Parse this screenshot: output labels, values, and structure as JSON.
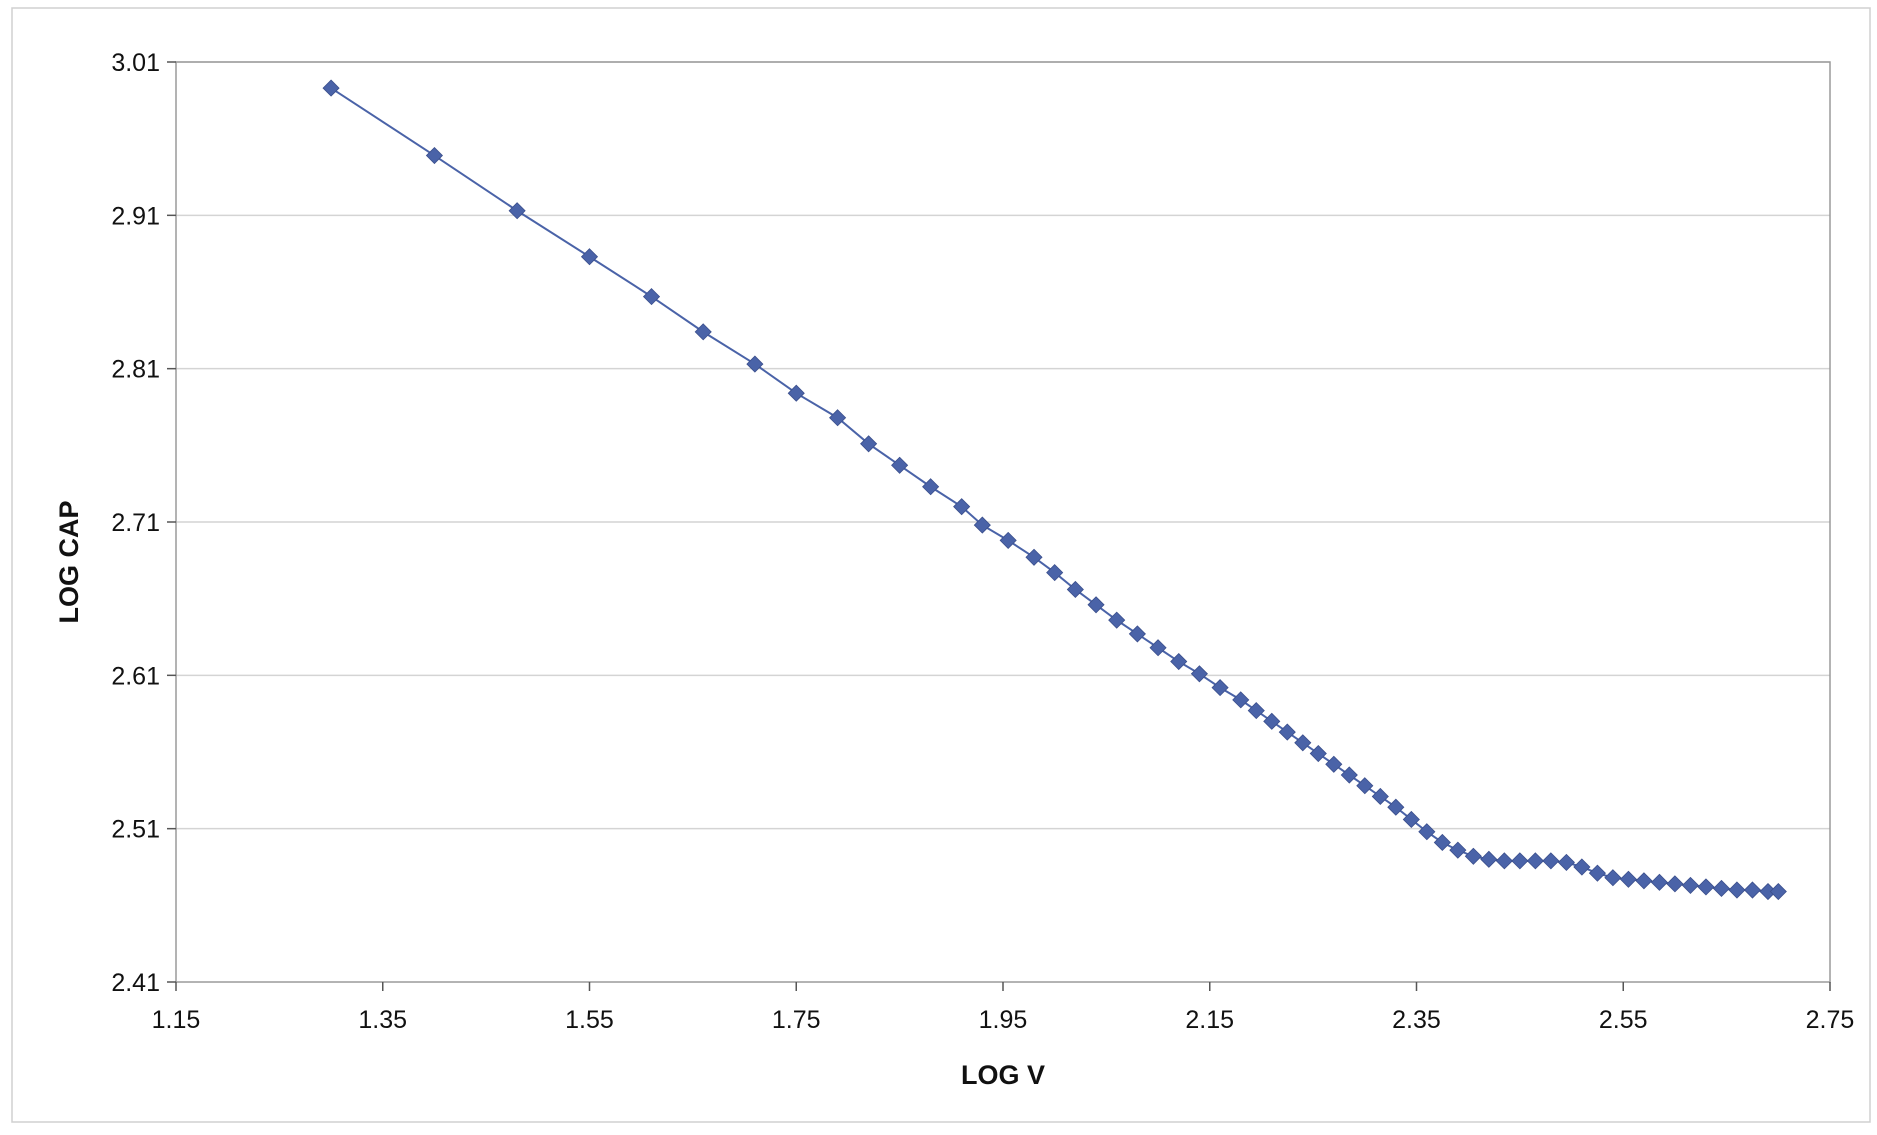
{
  "chart_data": {
    "type": "line",
    "title": "",
    "xlabel": "LOG V",
    "ylabel": "LOG CAP",
    "xlim": [
      1.15,
      2.75
    ],
    "ylim": [
      2.41,
      3.01
    ],
    "x_ticks": [
      "1.15",
      "1.35",
      "1.55",
      "1.75",
      "1.95",
      "2.15",
      "2.35",
      "2.55",
      "2.75"
    ],
    "y_ticks": [
      "2.41",
      "2.51",
      "2.61",
      "2.71",
      "2.81",
      "2.91",
      "3.01"
    ],
    "grid": "horizontal",
    "legend": "none",
    "marker": "diamond",
    "color": "#4a63a8",
    "series": [
      {
        "x": [
          1.3,
          1.4,
          1.48,
          1.55,
          1.61,
          1.66,
          1.71,
          1.75,
          1.79,
          1.82,
          1.85,
          1.88,
          1.91,
          1.93,
          1.955,
          1.98,
          2.0,
          2.02,
          2.04,
          2.06,
          2.08,
          2.1,
          2.12,
          2.14,
          2.16,
          2.18,
          2.195,
          2.21,
          2.225,
          2.24,
          2.255,
          2.27,
          2.285,
          2.3,
          2.315,
          2.33,
          2.345,
          2.36,
          2.375,
          2.39,
          2.405,
          2.42,
          2.435,
          2.45,
          2.465,
          2.48,
          2.495,
          2.51,
          2.525,
          2.54,
          2.555,
          2.57,
          2.585,
          2.6,
          2.615,
          2.63,
          2.645,
          2.66,
          2.675,
          2.69,
          2.7
        ],
        "y": [
          2.993,
          2.949,
          2.913,
          2.883,
          2.857,
          2.834,
          2.813,
          2.794,
          2.778,
          2.761,
          2.747,
          2.733,
          2.72,
          2.708,
          2.698,
          2.687,
          2.677,
          2.666,
          2.656,
          2.646,
          2.637,
          2.628,
          2.619,
          2.611,
          2.602,
          2.594,
          2.587,
          2.58,
          2.573,
          2.566,
          2.559,
          2.552,
          2.545,
          2.538,
          2.531,
          2.524,
          2.516,
          2.508,
          2.501,
          2.496,
          2.492,
          2.49,
          2.489,
          2.489,
          2.489,
          2.489,
          2.488,
          2.485,
          2.481,
          2.478,
          2.477,
          2.476,
          2.475,
          2.474,
          2.473,
          2.472,
          2.471,
          2.47,
          2.47,
          2.469,
          2.469
        ]
      }
    ]
  }
}
